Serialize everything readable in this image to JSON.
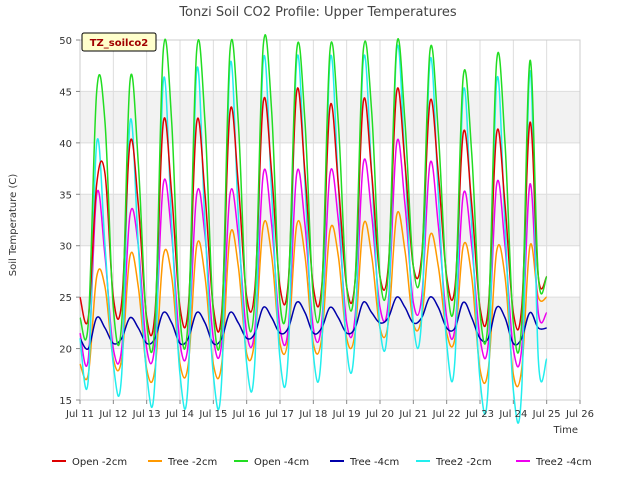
{
  "chart_data": {
    "type": "line",
    "title": "Tonzi Soil CO2 Profile: Upper Temperatures",
    "xlabel": "Time",
    "ylabel": "Soil Temperature (C)",
    "badge": "TZ_soilco2",
    "ylim": [
      15,
      50
    ],
    "xlim": [
      11,
      26
    ],
    "yticks": [
      15,
      20,
      25,
      30,
      35,
      40,
      45,
      50
    ],
    "xticks": [
      {
        "v": 11,
        "label": "Jul 11"
      },
      {
        "v": 12,
        "label": "Jul 12"
      },
      {
        "v": 13,
        "label": "Jul 13"
      },
      {
        "v": 14,
        "label": "Jul 14"
      },
      {
        "v": 15,
        "label": "Jul 15"
      },
      {
        "v": 16,
        "label": "Jul 16"
      },
      {
        "v": 17,
        "label": "Jul 17"
      },
      {
        "v": 18,
        "label": "Jul 18"
      },
      {
        "v": 19,
        "label": "Jul 19"
      },
      {
        "v": 20,
        "label": "Jul 20"
      },
      {
        "v": 21,
        "label": "Jul 21"
      },
      {
        "v": 22,
        "label": "Jul 22"
      },
      {
        "v": 23,
        "label": "Jul 23"
      },
      {
        "v": 24,
        "label": "Jul 24"
      },
      {
        "v": 25,
        "label": "Jul 25"
      },
      {
        "v": 26,
        "label": "Jul 26"
      }
    ],
    "grid": true,
    "legend_position": "bottom",
    "x_start": 11.0,
    "x_step": 0.25,
    "series": [
      {
        "name": "Open -2cm",
        "color": "#dd0000",
        "values": [
          25.0,
          23.0,
          36.0,
          37.0,
          25.0,
          24.5,
          40.0,
          34.0,
          23.0,
          23.5,
          42.0,
          35.0,
          24.0,
          24.0,
          42.0,
          35.0,
          24.0,
          23.5,
          43.0,
          36.0,
          25.0,
          26.0,
          44.0,
          37.0,
          26.0,
          26.5,
          45.0,
          37.0,
          26.0,
          26.0,
          43.5,
          36.0,
          26.0,
          26.5,
          44.0,
          37.0,
          27.0,
          28.0,
          45.0,
          38.0,
          28.0,
          29.0,
          44.0,
          37.0,
          27.0,
          26.0,
          41.0,
          34.0,
          24.0,
          24.0,
          41.0,
          34.0,
          23.5,
          24.0,
          42.0,
          27.0,
          27.0
        ]
      },
      {
        "name": "Tree -2cm",
        "color": "#ff9900",
        "values": [
          18.5,
          17.5,
          27.0,
          26.0,
          19.0,
          19.0,
          29.0,
          26.0,
          18.0,
          18.0,
          29.0,
          27.0,
          18.5,
          18.5,
          30.0,
          27.0,
          18.5,
          18.5,
          31.0,
          28.0,
          19.5,
          21.0,
          32.0,
          29.0,
          20.5,
          21.0,
          32.0,
          29.0,
          20.5,
          21.0,
          31.5,
          29.0,
          21.0,
          21.5,
          32.0,
          29.0,
          22.0,
          22.5,
          33.0,
          29.5,
          22.5,
          23.0,
          31.0,
          28.0,
          21.5,
          21.0,
          30.0,
          27.0,
          18.0,
          18.0,
          29.5,
          27.0,
          17.5,
          18.0,
          30.0,
          25.0,
          25.0
        ]
      },
      {
        "name": "Open -4cm",
        "color": "#22dd22",
        "values": [
          23.0,
          22.5,
          45.0,
          42.0,
          24.0,
          22.5,
          46.0,
          38.0,
          22.5,
          22.5,
          49.0,
          42.0,
          23.0,
          23.0,
          49.0,
          42.0,
          23.5,
          22.5,
          49.0,
          42.0,
          24.0,
          25.0,
          49.5,
          43.0,
          24.5,
          26.0,
          49.0,
          42.0,
          25.0,
          25.5,
          49.0,
          42.0,
          26.0,
          26.5,
          49.0,
          43.0,
          27.0,
          27.5,
          49.5,
          42.0,
          28.0,
          28.5,
          49.0,
          41.0,
          26.5,
          25.0,
          46.5,
          39.0,
          23.5,
          23.0,
          48.0,
          40.0,
          22.5,
          22.5,
          48.0,
          27.0,
          27.0
        ]
      },
      {
        "name": "Tree -4cm",
        "color": "#0000aa",
        "values": [
          21.0,
          20.0,
          23.0,
          22.0,
          20.5,
          21.0,
          23.0,
          22.0,
          20.5,
          21.0,
          23.5,
          22.5,
          20.5,
          21.0,
          23.5,
          22.5,
          20.5,
          21.0,
          23.5,
          22.5,
          21.0,
          21.5,
          24.0,
          23.0,
          21.5,
          22.0,
          24.5,
          23.5,
          21.5,
          22.0,
          24.0,
          23.0,
          21.5,
          22.0,
          24.5,
          23.5,
          22.5,
          23.0,
          25.0,
          24.0,
          22.5,
          23.0,
          25.0,
          24.0,
          22.0,
          22.0,
          24.5,
          23.0,
          21.0,
          21.0,
          24.0,
          23.0,
          20.5,
          21.0,
          23.5,
          22.0,
          22.0
        ]
      },
      {
        "name": "Tree2 -2cm",
        "color": "#22eeee",
        "values": [
          21.0,
          17.0,
          40.0,
          30.0,
          18.5,
          17.5,
          42.0,
          30.0,
          17.5,
          17.0,
          46.0,
          32.0,
          17.5,
          17.0,
          47.0,
          32.0,
          17.5,
          17.0,
          47.5,
          33.0,
          18.5,
          19.0,
          48.0,
          35.0,
          19.0,
          19.5,
          48.0,
          36.0,
          19.5,
          20.0,
          48.0,
          36.0,
          20.0,
          21.0,
          48.0,
          37.0,
          22.0,
          23.0,
          49.0,
          38.0,
          22.5,
          23.0,
          48.0,
          35.0,
          20.5,
          19.0,
          45.0,
          32.0,
          17.0,
          16.5,
          46.0,
          32.0,
          16.0,
          16.0,
          47.0,
          19.0,
          19.0
        ]
      },
      {
        "name": "Tree2 -4cm",
        "color": "#ee00ee",
        "values": [
          21.5,
          19.0,
          35.0,
          29.0,
          20.0,
          20.0,
          33.0,
          30.0,
          20.0,
          20.5,
          36.0,
          31.0,
          20.5,
          20.5,
          35.0,
          31.0,
          21.0,
          20.5,
          35.0,
          31.0,
          21.5,
          22.0,
          37.0,
          32.0,
          22.0,
          22.0,
          37.0,
          32.0,
          22.0,
          22.5,
          37.0,
          32.5,
          22.5,
          23.0,
          38.0,
          33.0,
          24.0,
          24.5,
          40.0,
          34.0,
          24.5,
          25.0,
          38.0,
          32.0,
          23.0,
          22.0,
          35.0,
          30.0,
          21.0,
          20.5,
          36.0,
          30.0,
          20.0,
          20.0,
          36.0,
          23.5,
          23.5
        ]
      }
    ]
  }
}
